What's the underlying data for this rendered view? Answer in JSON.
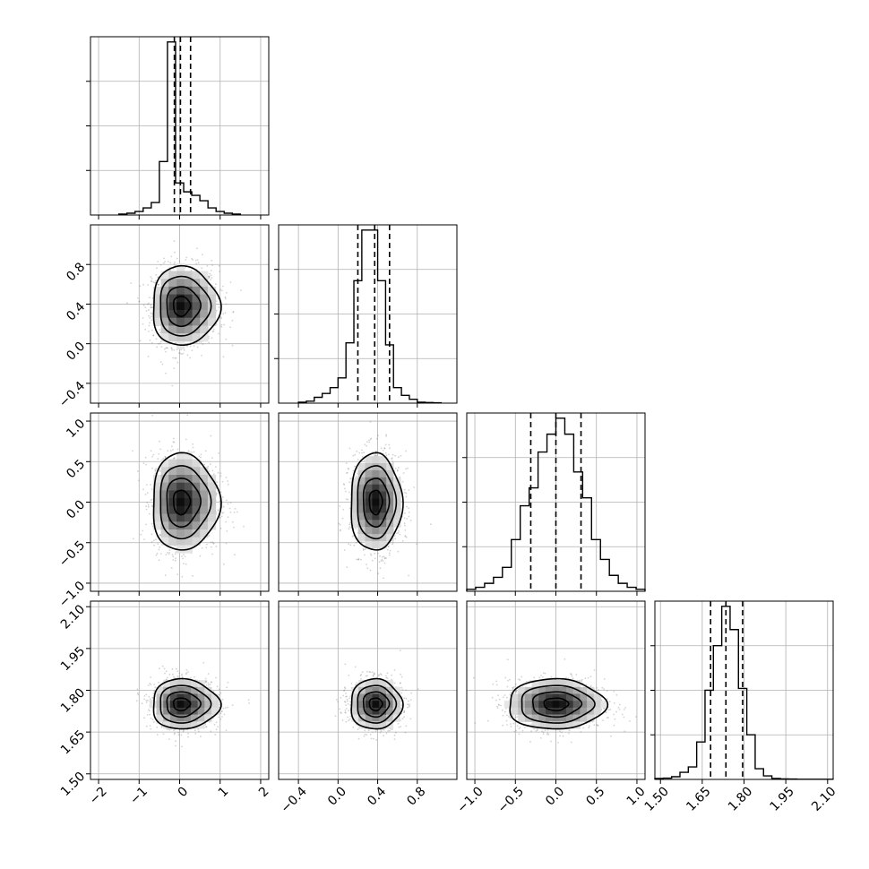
{
  "chart_data": {
    "type": "corner",
    "parameters": [
      {
        "index": 0,
        "range": [
          -2.2,
          2.2
        ],
        "ticks": [
          -2,
          -1,
          0,
          1,
          2
        ],
        "tick_labels": [
          "−2",
          "−1",
          "0",
          "1",
          "2"
        ],
        "quantiles": [
          -0.13,
          0.02,
          0.27
        ],
        "hist": {
          "edges": [
            -1.5,
            -1.3,
            -1.1,
            -0.9,
            -0.7,
            -0.5,
            -0.3,
            -0.1,
            0.1,
            0.3,
            0.5,
            0.7,
            0.9,
            1.1,
            1.3,
            1.5
          ],
          "counts": [
            0.005,
            0.01,
            0.02,
            0.04,
            0.07,
            0.3,
            0.97,
            0.18,
            0.13,
            0.11,
            0.08,
            0.04,
            0.02,
            0.01,
            0.005
          ]
        }
      },
      {
        "index": 1,
        "range": [
          -0.6,
          1.2
        ],
        "ticks": [
          -0.4,
          0.0,
          0.4,
          0.8
        ],
        "tick_labels": [
          "−0.4",
          "0.0",
          "0.4",
          "0.8"
        ],
        "quantiles": [
          0.2,
          0.37,
          0.52
        ],
        "hist": {
          "edges": [
            -0.4,
            -0.32,
            -0.24,
            -0.16,
            -0.08,
            0.0,
            0.08,
            0.16,
            0.24,
            0.32,
            0.4,
            0.48,
            0.56,
            0.64,
            0.72,
            0.8,
            0.88,
            0.96,
            1.04
          ],
          "counts": [
            0.005,
            0.01,
            0.03,
            0.05,
            0.08,
            0.13,
            0.31,
            0.63,
            0.89,
            0.89,
            0.63,
            0.3,
            0.08,
            0.04,
            0.02,
            0.005,
            0.003,
            0.002
          ]
        }
      },
      {
        "index": 2,
        "range": [
          -1.1,
          1.1
        ],
        "ticks": [
          -1.0,
          -0.5,
          0.0,
          0.5,
          1.0
        ],
        "tick_labels": [
          "−1.0",
          "−0.5",
          "0.0",
          "0.5",
          "1.0"
        ],
        "quantiles": [
          -0.31,
          0.0,
          0.31
        ],
        "hist": {
          "edges": [
            -1.1,
            -0.99,
            -0.88,
            -0.77,
            -0.66,
            -0.55,
            -0.44,
            -0.33,
            -0.22,
            -0.11,
            0.0,
            0.11,
            0.22,
            0.33,
            0.44,
            0.55,
            0.66,
            0.77,
            0.88,
            0.99,
            1.1
          ],
          "counts": [
            0.01,
            0.02,
            0.04,
            0.07,
            0.12,
            0.26,
            0.43,
            0.52,
            0.7,
            0.79,
            0.87,
            0.79,
            0.6,
            0.47,
            0.26,
            0.16,
            0.08,
            0.04,
            0.02,
            0.01
          ]
        }
      },
      {
        "index": 3,
        "range": [
          1.48,
          2.12
        ],
        "ticks": [
          1.5,
          1.65,
          1.8,
          1.95,
          2.1
        ],
        "tick_labels": [
          "1.50",
          "1.65",
          "1.80",
          "1.95",
          "2.10"
        ],
        "quantiles": [
          1.68,
          1.735,
          1.795
        ],
        "hist": {
          "edges": [
            1.48,
            1.51,
            1.54,
            1.57,
            1.6,
            1.63,
            1.66,
            1.69,
            1.72,
            1.75,
            1.78,
            1.81,
            1.84,
            1.87,
            1.9,
            1.93,
            1.96,
            1.99,
            2.02,
            2.05,
            2.08,
            2.12
          ],
          "counts": [
            0.005,
            0.007,
            0.015,
            0.04,
            0.07,
            0.21,
            0.5,
            0.75,
            0.97,
            0.84,
            0.51,
            0.25,
            0.06,
            0.02,
            0.005,
            0.003,
            0.002,
            0.001,
            0.001,
            0.001,
            0.001
          ]
        }
      }
    ],
    "pairs": [
      {
        "x": 0,
        "y": 1,
        "center": [
          0.02,
          0.38
        ],
        "sigma": [
          0.35,
          0.2
        ],
        "rho": 0.0
      },
      {
        "x": 0,
        "y": 2,
        "center": [
          0.02,
          0.0
        ],
        "sigma": [
          0.35,
          0.3
        ],
        "rho": 0.0
      },
      {
        "x": 1,
        "y": 2,
        "center": [
          0.38,
          0.0
        ],
        "sigma": [
          0.13,
          0.3
        ],
        "rho": 0.0
      },
      {
        "x": 0,
        "y": 3,
        "center": [
          0.02,
          1.75
        ],
        "sigma": [
          0.35,
          0.045
        ],
        "rho": 0.0
      },
      {
        "x": 1,
        "y": 3,
        "center": [
          0.38,
          1.75
        ],
        "sigma": [
          0.13,
          0.045
        ],
        "rho": 0.0
      },
      {
        "x": 2,
        "y": 3,
        "center": [
          0.0,
          1.75
        ],
        "sigma": [
          0.3,
          0.045
        ],
        "rho": 0.0
      }
    ],
    "contour_levels_sigma": [
      0.5,
      1.0,
      1.5,
      2.0
    ],
    "grid": true,
    "colors": {
      "line": "#000000",
      "grid": "#b0b0b0",
      "points": "#808080"
    }
  }
}
